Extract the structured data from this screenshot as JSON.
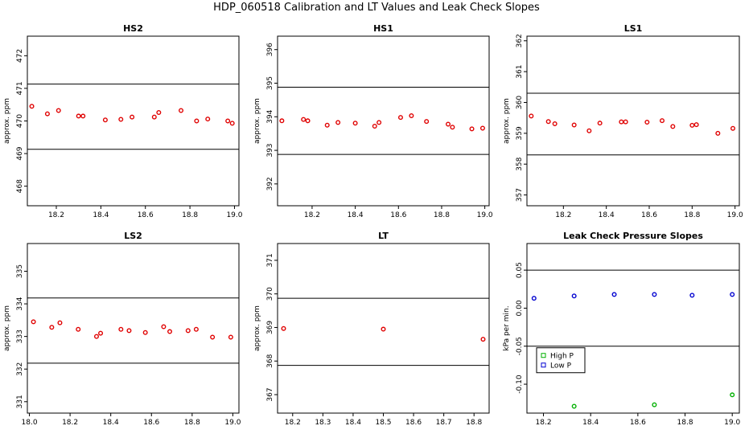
{
  "page": {
    "title": "HDP_060518  Calibration and LT Values and Leak Check Slopes"
  },
  "chart_data": [
    {
      "type": "scatter",
      "title": "HS2",
      "ylabel": "approx. ppm",
      "xlim": [
        18.07,
        19.02
      ],
      "ylim": [
        467.4,
        472.6
      ],
      "xticks": [
        18.2,
        18.4,
        18.6,
        18.8,
        19.0
      ],
      "xtick_labels": [
        "18.2",
        "18.4",
        "18.6",
        "18.8",
        "19.0"
      ],
      "yticks": [
        468,
        469,
        470,
        471,
        472
      ],
      "ytick_labels": [
        "468",
        "469",
        "470",
        "471",
        "472"
      ],
      "hlines": [
        471.13,
        469.13
      ],
      "points_color": "#e00000",
      "x": [
        18.09,
        18.16,
        18.21,
        18.3,
        18.32,
        18.42,
        18.49,
        18.54,
        18.64,
        18.66,
        18.76,
        18.83,
        18.88,
        18.97,
        18.99
      ],
      "y": [
        470.45,
        470.22,
        470.32,
        470.15,
        470.15,
        470.03,
        470.05,
        470.12,
        470.12,
        470.26,
        470.32,
        470.0,
        470.06,
        470.0,
        469.93
      ]
    },
    {
      "type": "scatter",
      "title": "HS1",
      "ylabel": "approx. ppm",
      "xlim": [
        18.04,
        19.02
      ],
      "ylim": [
        391.35,
        396.4
      ],
      "xticks": [
        18.2,
        18.4,
        18.6,
        18.8,
        19.0
      ],
      "xtick_labels": [
        "18.2",
        "18.4",
        "18.6",
        "18.8",
        "19.0"
      ],
      "yticks": [
        392,
        393,
        394,
        395,
        396
      ],
      "ytick_labels": [
        "392",
        "393",
        "394",
        "395",
        "396"
      ],
      "hlines": [
        394.88,
        392.88
      ],
      "points_color": "#e00000",
      "x": [
        18.06,
        18.16,
        18.18,
        18.27,
        18.32,
        18.4,
        18.49,
        18.51,
        18.61,
        18.66,
        18.73,
        18.83,
        18.85,
        18.94,
        18.99
      ],
      "y": [
        393.88,
        393.92,
        393.88,
        393.75,
        393.83,
        393.81,
        393.72,
        393.83,
        393.98,
        394.03,
        393.86,
        393.78,
        393.69,
        393.64,
        393.66
      ]
    },
    {
      "type": "scatter",
      "title": "LS1",
      "ylabel": "approx. ppm",
      "xlim": [
        18.03,
        19.02
      ],
      "ylim": [
        356.65,
        362.15
      ],
      "xticks": [
        18.2,
        18.4,
        18.6,
        18.8,
        19.0
      ],
      "xtick_labels": [
        "18.2",
        "18.4",
        "18.6",
        "18.8",
        "19.0"
      ],
      "yticks": [
        357,
        358,
        359,
        360,
        361,
        362
      ],
      "ytick_labels": [
        "357",
        "358",
        "359",
        "360",
        "361",
        "362"
      ],
      "hlines": [
        360.3,
        358.3
      ],
      "points_color": "#e00000",
      "x": [
        18.05,
        18.13,
        18.16,
        18.25,
        18.32,
        18.37,
        18.47,
        18.49,
        18.59,
        18.66,
        18.71,
        18.8,
        18.82,
        18.92,
        18.99
      ],
      "y": [
        359.56,
        359.38,
        359.31,
        359.27,
        359.08,
        359.33,
        359.37,
        359.37,
        359.36,
        359.41,
        359.22,
        359.26,
        359.28,
        359.0,
        359.16
      ]
    },
    {
      "type": "scatter",
      "title": "LS2",
      "ylabel": "approx. ppm",
      "xlim": [
        17.99,
        19.03
      ],
      "ylim": [
        330.65,
        335.85
      ],
      "xticks": [
        18.0,
        18.2,
        18.4,
        18.6,
        18.8,
        19.0
      ],
      "xtick_labels": [
        "18.0",
        "18.2",
        "18.4",
        "18.6",
        "18.8",
        "19.0"
      ],
      "yticks": [
        331,
        332,
        333,
        334,
        335
      ],
      "ytick_labels": [
        "331",
        "332",
        "333",
        "334",
        "335"
      ],
      "hlines": [
        334.18,
        332.18
      ],
      "points_color": "#e00000",
      "x": [
        18.02,
        18.11,
        18.15,
        18.24,
        18.33,
        18.35,
        18.45,
        18.49,
        18.57,
        18.66,
        18.69,
        18.78,
        18.82,
        18.9,
        18.99
      ],
      "y": [
        333.45,
        333.28,
        333.42,
        333.22,
        333.0,
        333.1,
        333.22,
        333.18,
        333.12,
        333.3,
        333.15,
        333.18,
        333.22,
        332.98,
        332.98
      ]
    },
    {
      "type": "scatter",
      "title": "LT",
      "ylabel": "approx. ppm",
      "xlim": [
        18.15,
        18.85
      ],
      "ylim": [
        366.45,
        371.5
      ],
      "xticks": [
        18.2,
        18.3,
        18.4,
        18.5,
        18.6,
        18.7,
        18.8
      ],
      "xtick_labels": [
        "18.2",
        "18.3",
        "18.4",
        "18.5",
        "18.6",
        "18.7",
        "18.8"
      ],
      "yticks": [
        367,
        368,
        369,
        370,
        371
      ],
      "ytick_labels": [
        "367",
        "368",
        "369",
        "370",
        "371"
      ],
      "hlines": [
        369.87,
        367.87
      ],
      "points_color": "#e00000",
      "x": [
        18.17,
        18.5,
        18.83
      ],
      "y": [
        368.97,
        368.95,
        368.65
      ]
    },
    {
      "type": "scatter",
      "title": "Leak Check Pressure Slopes",
      "ylabel": "kPa per min.",
      "xlim": [
        18.13,
        19.03
      ],
      "ylim": [
        -0.138,
        0.085
      ],
      "xticks": [
        18.2,
        18.4,
        18.6,
        18.8,
        19.0
      ],
      "xtick_labels": [
        "18.2",
        "18.4",
        "18.6",
        "18.8",
        "19.0"
      ],
      "yticks": [
        -0.1,
        -0.05,
        0.0,
        0.05
      ],
      "ytick_labels": [
        "-0.10",
        "-0.05",
        "0.00",
        "0.05"
      ],
      "hlines": [
        0.05,
        -0.05
      ],
      "legend_position": "lower-left",
      "series": [
        {
          "name": "High P",
          "color": "#00b000",
          "x": [
            18.33,
            18.67,
            19.0
          ],
          "y": [
            -0.129,
            -0.127,
            -0.114
          ]
        },
        {
          "name": "Low P",
          "color": "#0000d0",
          "x": [
            18.16,
            18.33,
            18.5,
            18.67,
            18.83,
            19.0
          ],
          "y": [
            0.013,
            0.016,
            0.018,
            0.018,
            0.017,
            0.018
          ]
        }
      ]
    }
  ]
}
